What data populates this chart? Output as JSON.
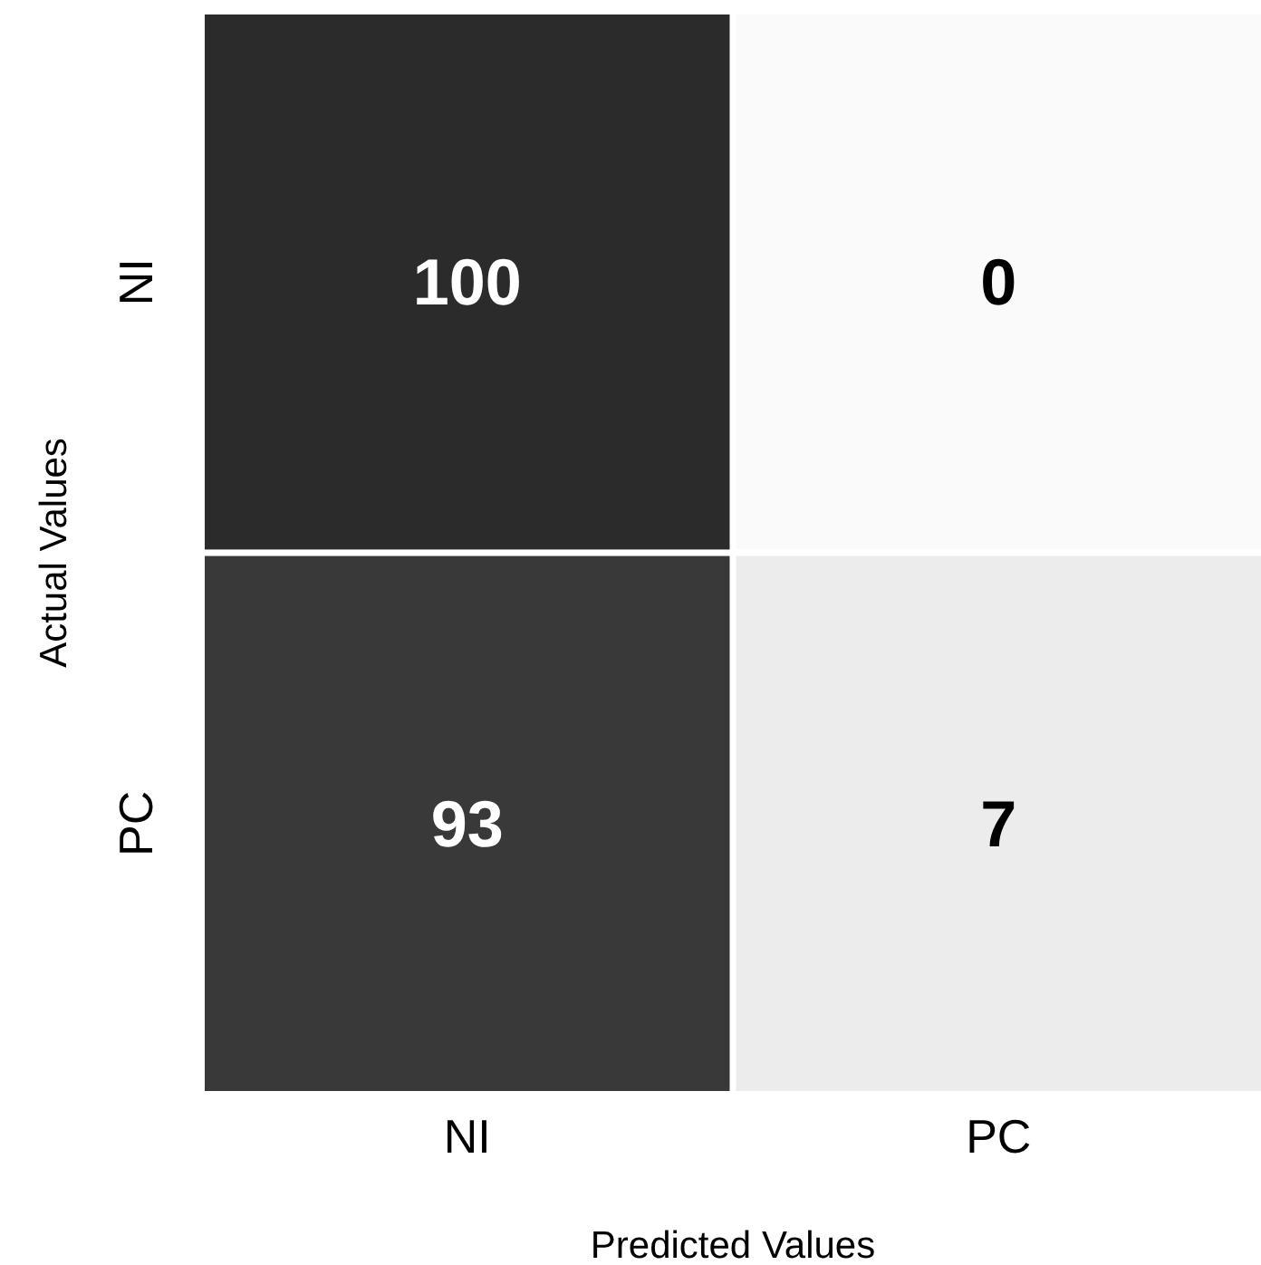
{
  "chart_data": {
    "type": "heatmap",
    "xlabel": "Predicted Values",
    "ylabel": "Actual Values",
    "categories": [
      "NI",
      "PC"
    ],
    "y_categories": [
      "NI",
      "PC"
    ],
    "data_labels": true,
    "cells": [
      [
        100,
        0
      ],
      [
        93,
        7
      ]
    ]
  }
}
